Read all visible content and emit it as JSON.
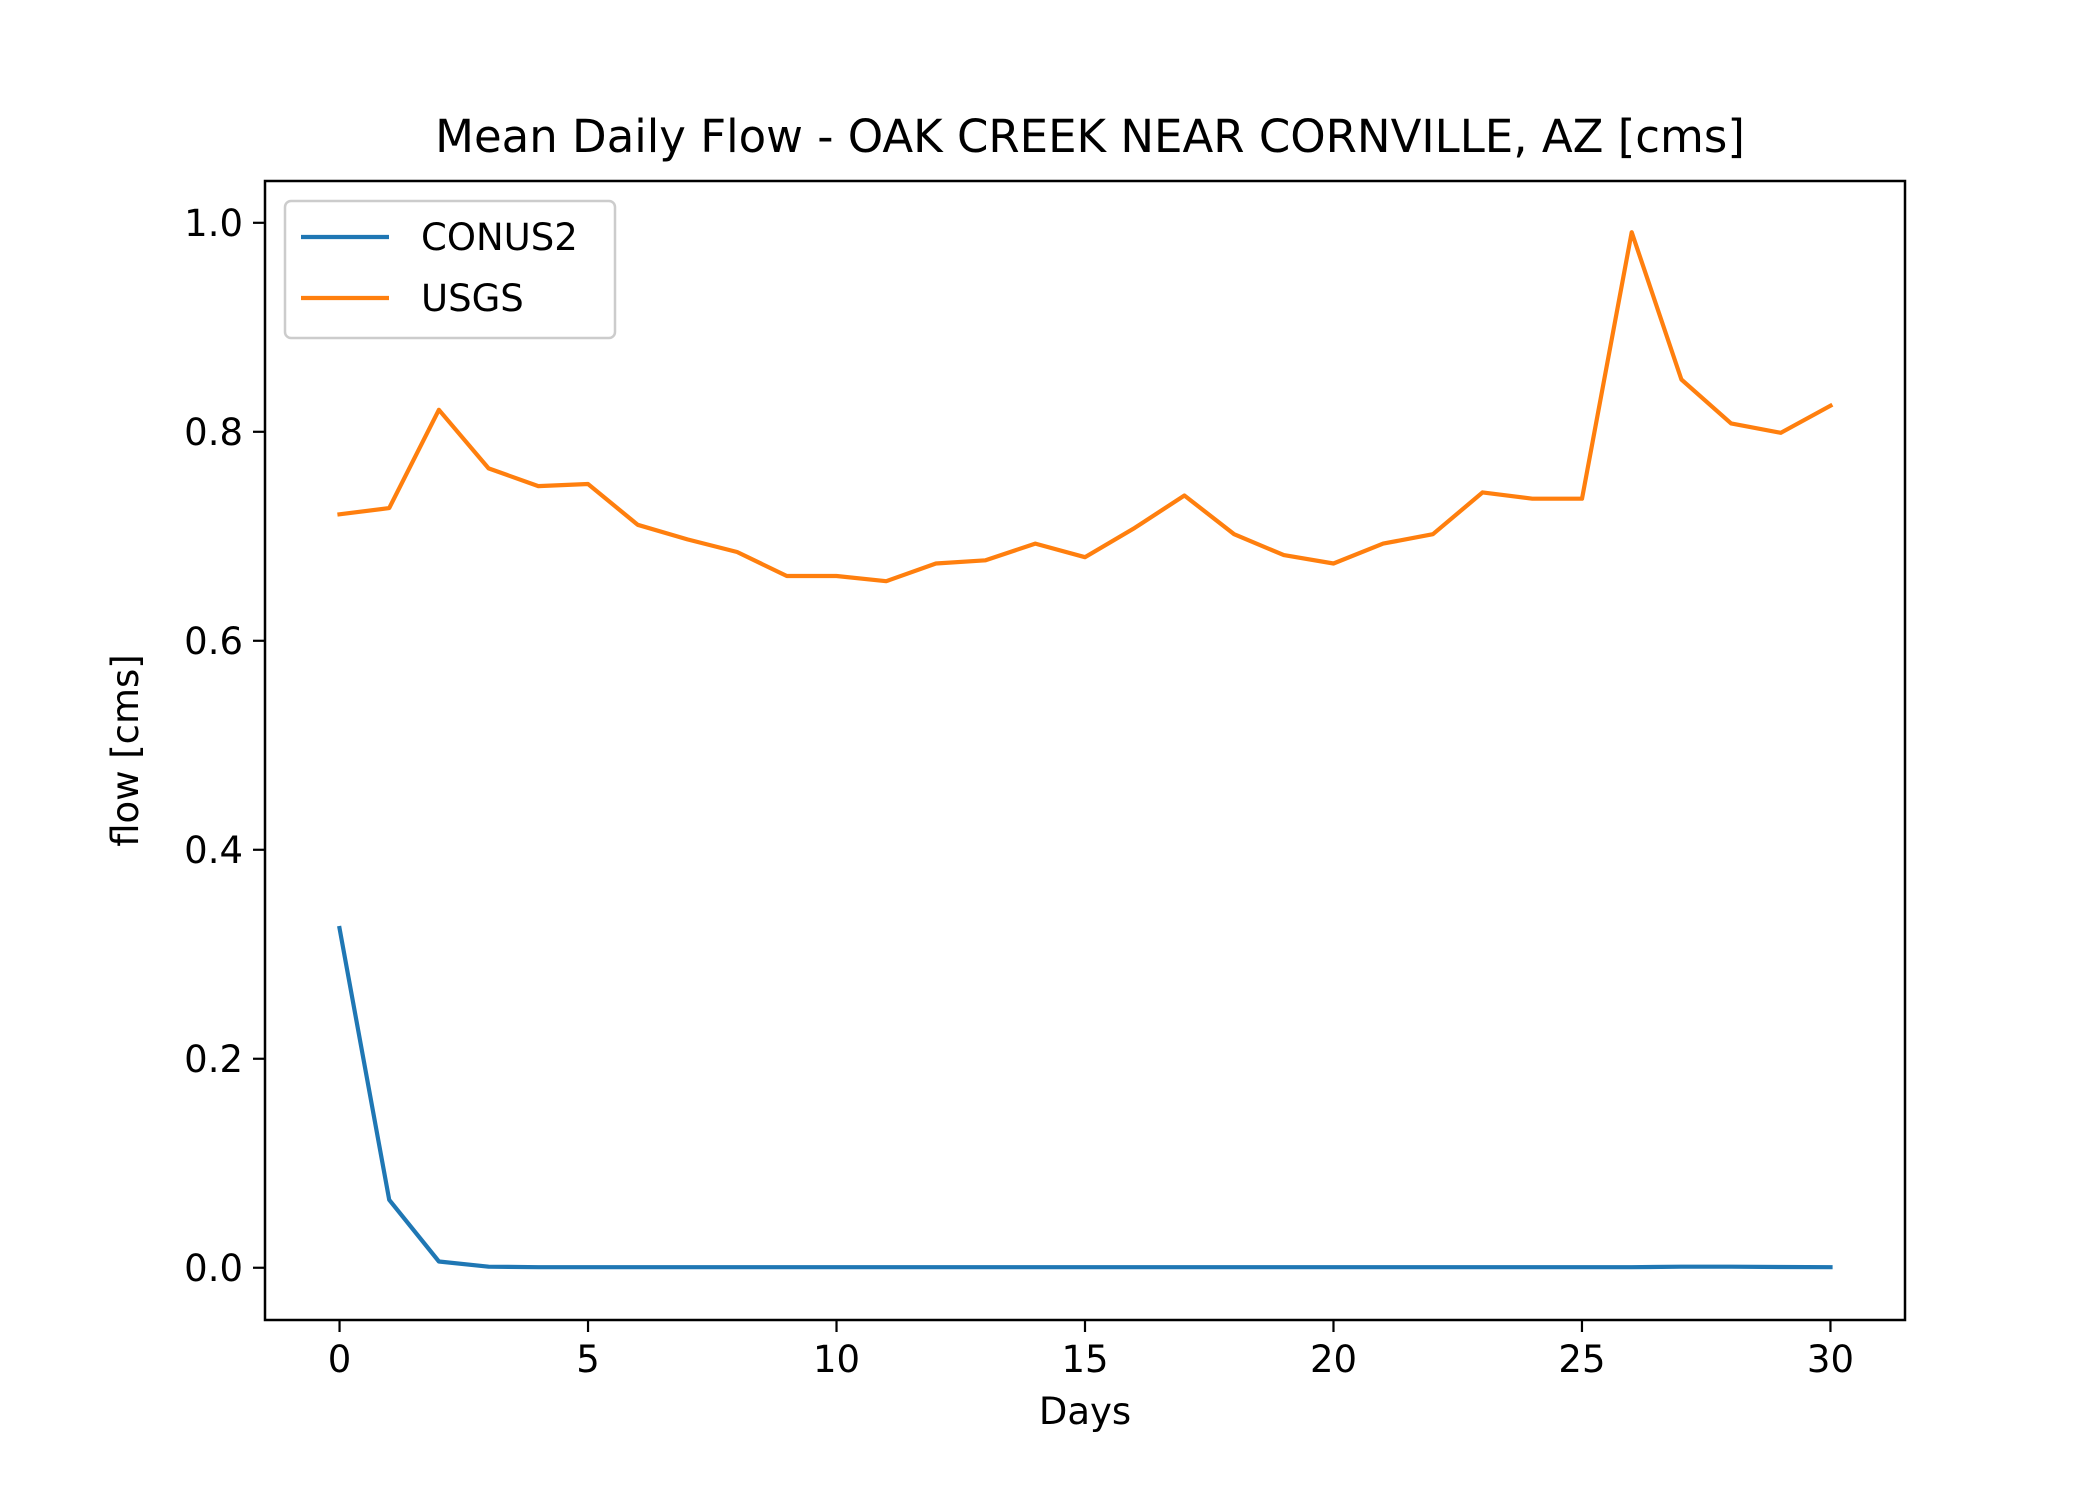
{
  "chart_data": {
    "type": "line",
    "title": "Mean Daily Flow - OAK CREEK NEAR CORNVILLE, AZ [cms]",
    "xlabel": "Days",
    "ylabel": "flow [cms]",
    "xlim": [
      -1.5,
      31.5
    ],
    "ylim": [
      -0.05,
      1.04
    ],
    "xticks": [
      0,
      5,
      10,
      15,
      20,
      25,
      30
    ],
    "yticks": [
      0.0,
      0.2,
      0.4,
      0.6,
      0.8,
      1.0
    ],
    "xtick_labels": [
      "0",
      "5",
      "10",
      "15",
      "20",
      "25",
      "30"
    ],
    "ytick_labels": [
      "0.0",
      "0.2",
      "0.4",
      "0.6",
      "0.8",
      "1.0"
    ],
    "grid": false,
    "legend_position": "top-left",
    "x": [
      0,
      1,
      2,
      3,
      4,
      5,
      6,
      7,
      8,
      9,
      10,
      11,
      12,
      13,
      14,
      15,
      16,
      17,
      18,
      19,
      20,
      21,
      22,
      23,
      24,
      25,
      26,
      27,
      28,
      29,
      30
    ],
    "series": [
      {
        "name": "CONUS2",
        "color": "#1f77b4",
        "values": [
          0.325,
          0.065,
          0.006,
          0.001,
          0.0005,
          0.0005,
          0.0005,
          0.0005,
          0.0005,
          0.0005,
          0.0005,
          0.0005,
          0.0005,
          0.0005,
          0.0005,
          0.0005,
          0.0005,
          0.0005,
          0.0005,
          0.0005,
          0.0005,
          0.0005,
          0.0005,
          0.0005,
          0.0005,
          0.0005,
          0.0005,
          0.001,
          0.001,
          0.0007,
          0.0005
        ]
      },
      {
        "name": "USGS",
        "color": "#ff7f0e",
        "values": [
          0.721,
          0.727,
          0.821,
          0.765,
          0.748,
          0.75,
          0.711,
          0.697,
          0.685,
          0.662,
          0.662,
          0.657,
          0.674,
          0.677,
          0.693,
          0.68,
          0.708,
          0.739,
          0.702,
          0.682,
          0.674,
          0.693,
          0.702,
          0.742,
          0.736,
          0.736,
          0.991,
          0.85,
          0.808,
          0.799,
          0.825
        ]
      }
    ]
  }
}
